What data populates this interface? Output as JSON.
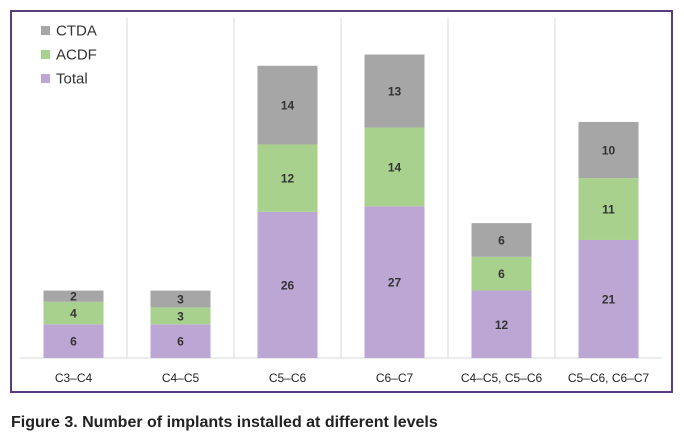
{
  "caption": "Figure 3. Number of implants installed at different levels",
  "colors": {
    "frame": "#5b3a7e",
    "CTDA": "#a6a6a6",
    "ACDF": "#a9d18e",
    "Total": "#bca6d3"
  },
  "chart_data": {
    "type": "bar",
    "stacked": true,
    "categories": [
      "C3–C4",
      "C4–C5",
      "C5–C6",
      "C6–C7",
      "C4–C5, C5–C6",
      "C5–C6, C6–C7"
    ],
    "series": [
      {
        "name": "Total",
        "values": [
          6,
          6,
          26,
          27,
          12,
          21
        ]
      },
      {
        "name": "ACDF",
        "values": [
          4,
          3,
          12,
          14,
          6,
          11
        ]
      },
      {
        "name": "CTDA",
        "values": [
          2,
          3,
          14,
          13,
          6,
          10
        ]
      }
    ],
    "legend_order": [
      "CTDA",
      "ACDF",
      "Total"
    ],
    "legend_position": "top-left",
    "ylim": [
      0,
      56
    ],
    "grid": "vertical category separators"
  }
}
